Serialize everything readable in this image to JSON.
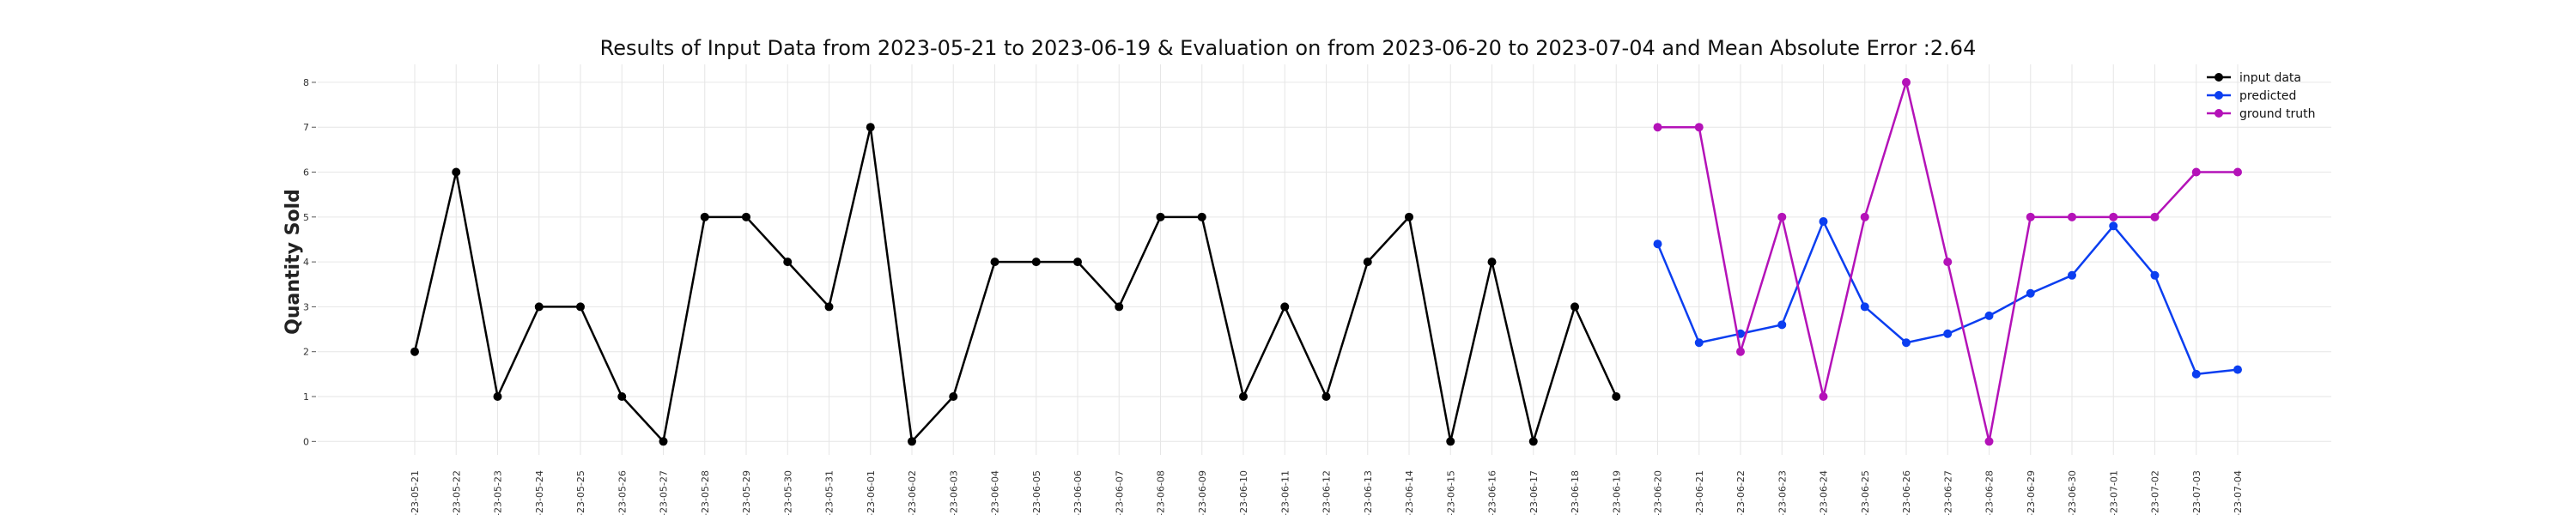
{
  "chart_data": {
    "type": "line",
    "title": "Results of Input Data from 2023-05-21 to 2023-06-19 & Evaluation on from 2023-06-20 to 2023-07-04 and Mean Absolute Error  :2.64",
    "xlabel": "",
    "ylabel": "Quantity Sold",
    "ylim": [
      -0.3,
      8.4
    ],
    "yticks": [
      "0",
      "1",
      "2",
      "3",
      "4",
      "5",
      "6",
      "7",
      "8"
    ],
    "grid": true,
    "legend_position": "top-right",
    "x": [
      "2023-05-21",
      "2023-05-22",
      "2023-05-23",
      "2023-05-24",
      "2023-05-25",
      "2023-05-26",
      "2023-05-27",
      "2023-05-28",
      "2023-05-29",
      "2023-05-30",
      "2023-05-31",
      "2023-06-01",
      "2023-06-02",
      "2023-06-03",
      "2023-06-04",
      "2023-06-05",
      "2023-06-06",
      "2023-06-07",
      "2023-06-08",
      "2023-06-09",
      "2023-06-10",
      "2023-06-11",
      "2023-06-12",
      "2023-06-13",
      "2023-06-14",
      "2023-06-15",
      "2023-06-16",
      "2023-06-17",
      "2023-06-18",
      "2023-06-19",
      "2023-06-20",
      "2023-06-21",
      "2023-06-22",
      "2023-06-23",
      "2023-06-24",
      "2023-06-25",
      "2023-06-26",
      "2023-06-27",
      "2023-06-28",
      "2023-06-29",
      "2023-06-30",
      "2023-07-01",
      "2023-07-02",
      "2023-07-03",
      "2023-07-04"
    ],
    "xtick_labels": [
      "-23-05-21",
      "-23-05-22",
      "-23-05-23",
      "-23-05-24",
      "-23-05-25",
      "-23-05-26",
      "-23-05-27",
      "-23-05-28",
      "-23-05-29",
      "-23-05-30",
      "-23-05-31",
      "-23-06-01",
      "-23-06-02",
      "-23-06-03",
      "-23-06-04",
      "-23-06-05",
      "-23-06-06",
      "-23-06-07",
      "-23-06-08",
      "-23-06-09",
      "-23-06-10",
      "-23-06-11",
      "-23-06-12",
      "-23-06-13",
      "-23-06-14",
      "-23-06-15",
      "-23-06-16",
      "-23-06-17",
      "-23-06-18",
      "-23-06-19",
      "-23-06-20",
      "-23-06-21",
      "-23-06-22",
      "-23-06-23",
      "-23-06-24",
      "-23-06-25",
      "-23-06-26",
      "-23-06-27",
      "-23-06-28",
      "-23-06-29",
      "-23-06-30",
      "-23-07-01",
      "-23-07-02",
      "-23-07-03",
      "-23-07-04"
    ],
    "series": [
      {
        "name": "input data",
        "color": "#000000",
        "x": [
          "2023-05-21",
          "2023-05-22",
          "2023-05-23",
          "2023-05-24",
          "2023-05-25",
          "2023-05-26",
          "2023-05-27",
          "2023-05-28",
          "2023-05-29",
          "2023-05-30",
          "2023-05-31",
          "2023-06-01",
          "2023-06-02",
          "2023-06-03",
          "2023-06-04",
          "2023-06-05",
          "2023-06-06",
          "2023-06-07",
          "2023-06-08",
          "2023-06-09",
          "2023-06-10",
          "2023-06-11",
          "2023-06-12",
          "2023-06-13",
          "2023-06-14",
          "2023-06-15",
          "2023-06-16",
          "2023-06-17",
          "2023-06-18",
          "2023-06-19"
        ],
        "values": [
          2,
          6,
          1,
          3,
          3,
          1,
          0,
          5,
          5,
          4,
          3,
          7,
          0,
          1,
          4,
          4,
          4,
          3,
          5,
          5,
          1,
          3,
          1,
          4,
          5,
          0,
          4,
          0,
          3,
          1
        ]
      },
      {
        "name": "predicted",
        "color": "#0b3ef0",
        "x": [
          "2023-06-20",
          "2023-06-21",
          "2023-06-22",
          "2023-06-23",
          "2023-06-24",
          "2023-06-25",
          "2023-06-26",
          "2023-06-27",
          "2023-06-28",
          "2023-06-29",
          "2023-06-30",
          "2023-07-01",
          "2023-07-02",
          "2023-07-03",
          "2023-07-04"
        ],
        "values": [
          4.4,
          2.2,
          2.4,
          2.6,
          4.9,
          3.0,
          2.2,
          2.4,
          2.8,
          3.3,
          3.7,
          4.8,
          3.7,
          1.5,
          1.6
        ]
      },
      {
        "name": "ground truth",
        "color": "#b412b8",
        "x": [
          "2023-06-20",
          "2023-06-21",
          "2023-06-22",
          "2023-06-23",
          "2023-06-24",
          "2023-06-25",
          "2023-06-26",
          "2023-06-27",
          "2023-06-28",
          "2023-06-29",
          "2023-06-30",
          "2023-07-01",
          "2023-07-02",
          "2023-07-03",
          "2023-07-04"
        ],
        "values": [
          7,
          7,
          2,
          5,
          1,
          5,
          8,
          4,
          0,
          5,
          5,
          5,
          5,
          6,
          6
        ]
      }
    ]
  }
}
